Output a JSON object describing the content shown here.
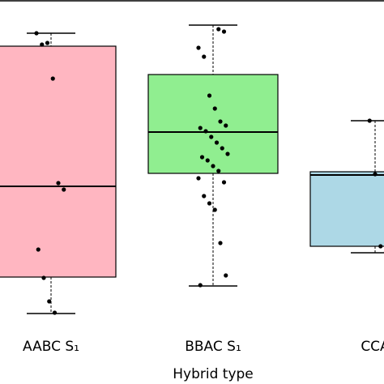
{
  "chart_data": {
    "type": "box",
    "x_label": "Hybrid type",
    "categories": [
      "AABC S₁",
      "BBAC S₁",
      "CCA"
    ],
    "colors": [
      "#ffb6c1",
      "#90ee90",
      "#add8e6"
    ],
    "ylim": [
      0,
      100
    ],
    "boxes": [
      {
        "whisker_high": 89.75,
        "q3": 85.75,
        "median": 42.5,
        "q1": 14.5,
        "whisker_low": 3.25
      },
      {
        "whisker_high": 92.25,
        "q3": 77,
        "median": 59.25,
        "q1": 46.5,
        "whisker_low": 11.75
      },
      {
        "whisker_high": 62.75,
        "q3": 47,
        "median": 46,
        "q1": 24,
        "whisker_low": 22
      }
    ],
    "points": [
      [
        89.75,
        86.25,
        86.75,
        75.75,
        43.5,
        41.5,
        23,
        14.25,
        7,
        3.5
      ],
      [
        91,
        90.25,
        85.25,
        82.5,
        70.5,
        66.5,
        62.5,
        61.25,
        60.5,
        59.5,
        57.75,
        56,
        54.25,
        52.5,
        51.5,
        50.5,
        48.75,
        47.25,
        43.75,
        45,
        39.5,
        37.25,
        35.25,
        25,
        15,
        12
      ],
      [
        62.75,
        46.25,
        24,
        22.25
      ]
    ]
  }
}
